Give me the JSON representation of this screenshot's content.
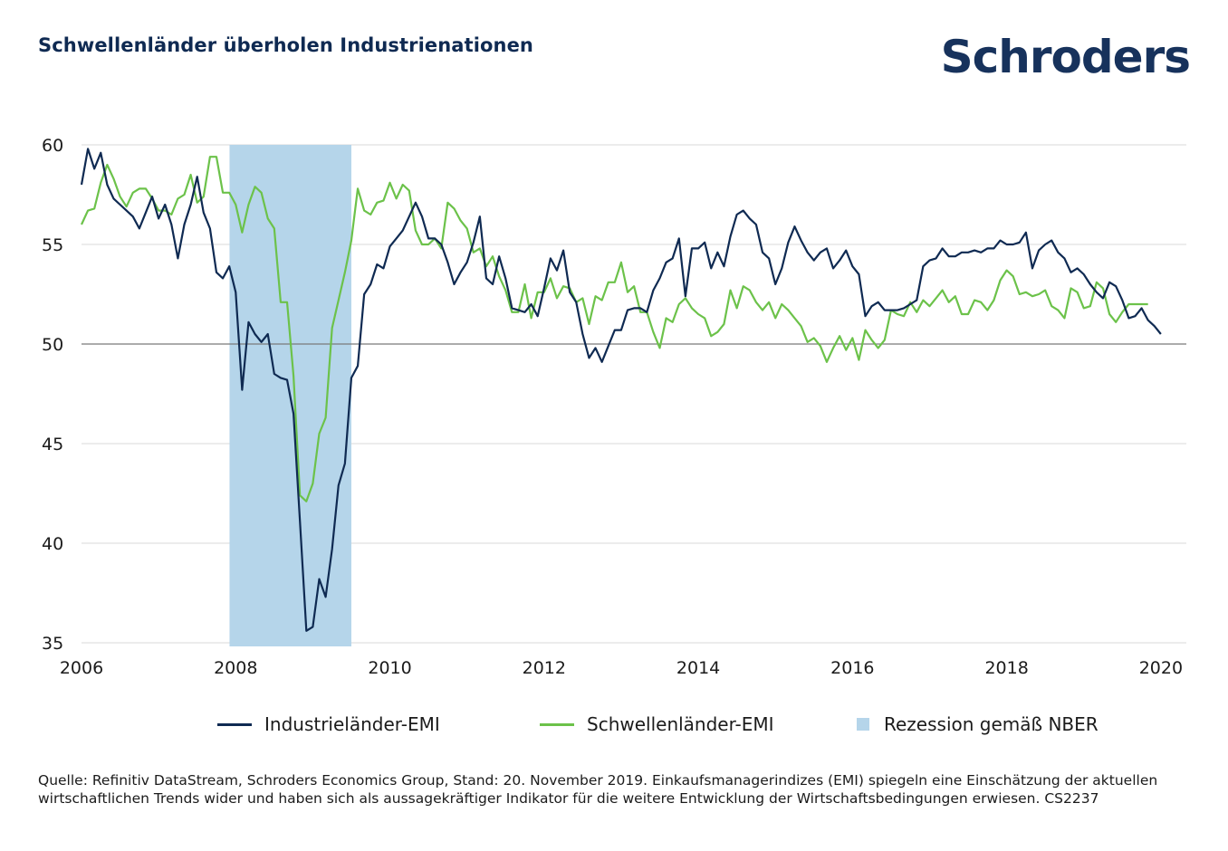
{
  "title": "Schwellenländer überholen Industrienationen",
  "logo_text": "Schroders",
  "footnote": "Quelle: Refinitiv DataStream, Schroders Economics Group, Stand: 20. November 2019. Einkaufsmanagerindizes (EMI) spiegeln eine Einschätzung der aktuellen wirtschaftlichen Trends wider und haben sich als aussagekräftiger Indikator für die weitere Entwicklung der Wirtschaftsbedingungen erwiesen. CS2237",
  "legend": [
    {
      "label": "Industrieländer-EMI",
      "color": "#0f2a52",
      "kind": "line"
    },
    {
      "label": "Schwellenländer-EMI",
      "color": "#6cc24a",
      "kind": "line"
    },
    {
      "label": "Rezession gemäß NBER",
      "color": "#b5d5ea",
      "kind": "box"
    }
  ],
  "chart_data": {
    "type": "line",
    "x_unit": "year",
    "xlim": [
      2006,
      2020.33
    ],
    "ylim": [
      35,
      60
    ],
    "x_ticks": [
      "2006",
      "2008",
      "2010",
      "2012",
      "2014",
      "2016",
      "2018",
      "2020"
    ],
    "y_ticks": [
      "35",
      "40",
      "45",
      "50",
      "55",
      "60"
    ],
    "grid": true,
    "reference_line": 50,
    "recession": {
      "start": 2007.92,
      "end": 2009.5,
      "label": "Rezession gemäß NBER"
    },
    "series": [
      {
        "name": "Industrieländer-EMI",
        "color": "#0f2a52",
        "x_start": 2006.0,
        "x_step": 0.08333,
        "values": [
          58.0,
          59.8,
          58.8,
          59.6,
          58.0,
          57.3,
          57.0,
          56.7,
          56.4,
          55.8,
          56.6,
          57.4,
          56.3,
          57.0,
          56.0,
          54.3,
          56.0,
          57.0,
          58.4,
          56.6,
          55.8,
          53.6,
          53.3,
          53.9,
          52.6,
          47.7,
          51.1,
          50.5,
          50.1,
          50.5,
          48.5,
          48.3,
          48.2,
          46.5,
          41.1,
          35.6,
          35.8,
          38.2,
          37.3,
          39.7,
          42.9,
          44.0,
          48.3,
          48.9,
          52.5,
          53.0,
          54.0,
          53.8,
          54.9,
          55.3,
          55.7,
          56.4,
          57.1,
          56.4,
          55.3,
          55.3,
          55.0,
          54.1,
          53.0,
          53.6,
          54.1,
          55.1,
          56.4,
          53.3,
          53.0,
          54.4,
          53.3,
          51.8,
          51.7,
          51.6,
          52.0,
          51.4,
          52.8,
          54.3,
          53.7,
          54.7,
          52.6,
          52.1,
          50.5,
          49.3,
          49.8,
          49.1,
          49.9,
          50.7,
          50.7,
          51.7,
          51.8,
          51.8,
          51.6,
          52.7,
          53.3,
          54.1,
          54.3,
          55.3,
          52.4,
          54.8,
          54.8,
          55.1,
          53.8,
          54.6,
          53.9,
          55.4,
          56.5,
          56.7,
          56.3,
          56.0,
          54.6,
          54.3,
          53.0,
          53.8,
          55.1,
          55.9,
          55.2,
          54.6,
          54.2,
          54.6,
          54.8,
          53.8,
          54.2,
          54.7,
          53.9,
          53.5,
          51.4,
          51.9,
          52.1,
          51.7,
          51.7,
          51.7,
          51.8,
          52.0,
          52.2,
          53.9,
          54.2,
          54.3,
          54.8,
          54.4,
          54.4,
          54.6,
          54.6,
          54.7,
          54.6,
          54.8,
          54.8,
          55.2,
          55.0,
          55.0,
          55.1,
          55.6,
          53.8,
          54.7,
          55.0,
          55.2,
          54.6,
          54.3,
          53.6,
          53.8,
          53.5,
          53.0,
          52.6,
          52.3,
          53.1,
          52.9,
          52.2,
          51.3,
          51.4,
          51.8,
          51.2,
          50.9,
          50.5
        ]
      },
      {
        "name": "Schwellenländer-EMI",
        "color": "#6cc24a",
        "x_start": 2006.0,
        "x_step": 0.08333,
        "values": [
          56.0,
          56.7,
          56.8,
          58.1,
          59.0,
          58.3,
          57.4,
          56.9,
          57.6,
          57.8,
          57.8,
          57.3,
          56.7,
          56.7,
          56.5,
          57.3,
          57.5,
          58.5,
          57.1,
          57.4,
          59.4,
          59.4,
          57.6,
          57.6,
          57.0,
          55.6,
          57.0,
          57.9,
          57.6,
          56.3,
          55.8,
          52.1,
          52.1,
          48.4,
          42.4,
          42.1,
          43.0,
          45.5,
          46.3,
          50.8,
          52.2,
          53.6,
          55.2,
          57.8,
          56.7,
          56.5,
          57.1,
          57.2,
          58.1,
          57.3,
          58.0,
          57.7,
          55.7,
          55.0,
          55.0,
          55.3,
          54.8,
          57.1,
          56.8,
          56.2,
          55.8,
          54.6,
          54.8,
          53.9,
          54.4,
          53.4,
          52.7,
          51.6,
          51.6,
          53.0,
          51.3,
          52.6,
          52.6,
          53.3,
          52.3,
          52.9,
          52.8,
          52.1,
          52.3,
          51.0,
          52.4,
          52.2,
          53.1,
          53.1,
          54.1,
          52.6,
          52.9,
          51.6,
          51.6,
          50.6,
          49.8,
          51.3,
          51.1,
          52.0,
          52.3,
          51.8,
          51.5,
          51.3,
          50.4,
          50.6,
          51.0,
          52.7,
          51.8,
          52.9,
          52.7,
          52.1,
          51.7,
          52.1,
          51.3,
          52.0,
          51.7,
          51.3,
          50.9,
          50.1,
          50.3,
          49.9,
          49.1,
          49.8,
          50.4,
          49.7,
          50.3,
          49.2,
          50.7,
          50.2,
          49.8,
          50.2,
          51.7,
          51.5,
          51.4,
          52.1,
          51.6,
          52.2,
          51.9,
          52.3,
          52.7,
          52.1,
          52.4,
          51.5,
          51.5,
          52.2,
          52.1,
          51.7,
          52.2,
          53.2,
          53.7,
          53.4,
          52.5,
          52.6,
          52.4,
          52.5,
          52.7,
          51.9,
          51.7,
          51.3,
          52.8,
          52.6,
          51.8,
          51.9,
          53.1,
          52.8,
          51.5,
          51.1,
          51.6,
          52.0,
          52.0,
          52.0,
          52.0
        ]
      }
    ]
  }
}
